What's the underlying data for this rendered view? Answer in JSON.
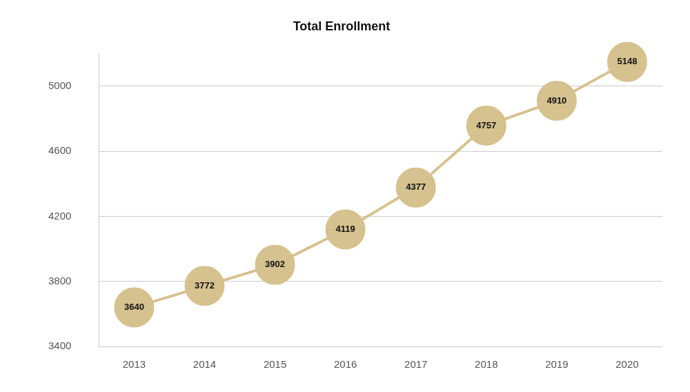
{
  "chart_data": {
    "type": "line",
    "title": "Total Enrollment",
    "categories": [
      "2013",
      "2014",
      "2015",
      "2016",
      "2017",
      "2018",
      "2019",
      "2020"
    ],
    "values": [
      3640,
      3772,
      3902,
      4119,
      4377,
      4757,
      4910,
      5148
    ],
    "color": "#d6c28f",
    "marker": "circle",
    "ylim": [
      3400,
      5200
    ],
    "yticks": [
      3400,
      3800,
      4200,
      4600,
      5000
    ],
    "grid": true,
    "data_labels": true
  }
}
